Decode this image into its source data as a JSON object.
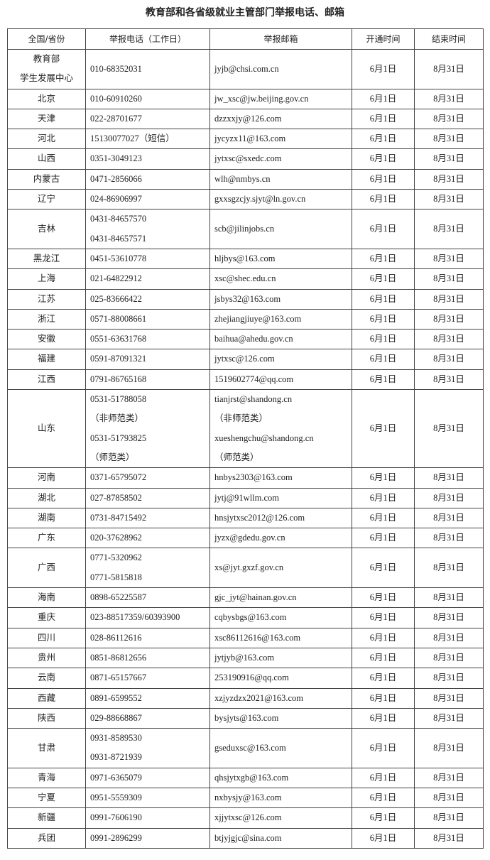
{
  "title": "教育部和各省级就业主管部门举报电话、邮箱",
  "table": {
    "headers": [
      "全国/省份",
      "举报电话（工作日）",
      "举报邮箱",
      "开通时间",
      "结束时间"
    ],
    "rows": [
      [
        [
          "教育部",
          "学生发展中心"
        ],
        "010-68352031",
        "jyjb@chsi.com.cn",
        "6月1日",
        "8月31日"
      ],
      [
        "北京",
        "010-60910260",
        "jw_xsc@jw.beijing.gov.cn",
        "6月1日",
        "8月31日"
      ],
      [
        "天津",
        "022-28701677",
        "dzzxxjy@126.com",
        "6月1日",
        "8月31日"
      ],
      [
        "河北",
        "15130077027（短信）",
        "jycyzx11@163.com",
        "6月1日",
        "8月31日"
      ],
      [
        "山西",
        "0351-3049123",
        "jytxsc@sxedc.com",
        "6月1日",
        "8月31日"
      ],
      [
        "内蒙古",
        "0471-2856066",
        "wlh@nmbys.cn",
        "6月1日",
        "8月31日"
      ],
      [
        "辽宁",
        "024-86906997",
        "gxxsgzcjy.sjyt@ln.gov.cn",
        "6月1日",
        "8月31日"
      ],
      [
        "吉林",
        [
          "0431-84657570",
          "0431-84657571"
        ],
        "scb@jilinjobs.cn",
        "6月1日",
        "8月31日"
      ],
      [
        "黑龙江",
        "0451-53610778",
        "hljbys@163.com",
        "6月1日",
        "8月31日"
      ],
      [
        "上海",
        "021-64822912",
        "xsc@shec.edu.cn",
        "6月1日",
        "8月31日"
      ],
      [
        "江苏",
        "025-83666422",
        "jsbys32@163.com",
        "6月1日",
        "8月31日"
      ],
      [
        "浙江",
        "0571-88008661",
        "zhejiangjiuye@163.com",
        "6月1日",
        "8月31日"
      ],
      [
        "安徽",
        "0551-63631768",
        "baihua@ahedu.gov.cn",
        "6月1日",
        "8月31日"
      ],
      [
        "福建",
        "0591-87091321",
        "jytxsc@126.com",
        "6月1日",
        "8月31日"
      ],
      [
        "江西",
        "0791-86765168",
        "1519602774@qq.com",
        "6月1日",
        "8月31日"
      ],
      [
        "山东",
        [
          "0531-51788058",
          "（非师范类）",
          "0531-51793825",
          "（师范类）"
        ],
        [
          "tianjrst@shandong.cn",
          "（非师范类）",
          "xueshengchu@shandong.cn",
          "（师范类）"
        ],
        "6月1日",
        "8月31日"
      ],
      [
        "河南",
        "0371-65795072",
        "hnbys2303@163.com",
        "6月1日",
        "8月31日"
      ],
      [
        "湖北",
        "027-87858502",
        "jytj@91wllm.com",
        "6月1日",
        "8月31日"
      ],
      [
        "湖南",
        "0731-84715492",
        "hnsjytxsc2012@126.com",
        "6月1日",
        "8月31日"
      ],
      [
        "广东",
        "020-37628962",
        "jyzx@gdedu.gov.cn",
        "6月1日",
        "8月31日"
      ],
      [
        "广西",
        [
          "0771-5320962",
          "0771-5815818"
        ],
        "xs@jyt.gxzf.gov.cn",
        "6月1日",
        "8月31日"
      ],
      [
        "海南",
        "0898-65225587",
        "gjc_jyt@hainan.gov.cn",
        "6月1日",
        "8月31日"
      ],
      [
        "重庆",
        "023-88517359/60393900",
        "cqbysbgs@163.com",
        "6月1日",
        "8月31日"
      ],
      [
        "四川",
        "028-86112616",
        "xsc86112616@163.com",
        "6月1日",
        "8月31日"
      ],
      [
        "贵州",
        "0851-86812656",
        "jytjyb@163.com",
        "6月1日",
        "8月31日"
      ],
      [
        "云南",
        "0871-65157667",
        "253190916@qq.com",
        "6月1日",
        "8月31日"
      ],
      [
        "西藏",
        "0891-6599552",
        "xzjyzdzx2021@163.com",
        "6月1日",
        "8月31日"
      ],
      [
        "陕西",
        "029-88668867",
        "bysjyts@163.com",
        "6月1日",
        "8月31日"
      ],
      [
        "甘肃",
        [
          "0931-8589530",
          "0931-8721939"
        ],
        "gseduxsc@163.com",
        "6月1日",
        "8月31日"
      ],
      [
        "青海",
        "0971-6365079",
        "qhsjytxgb@163.com",
        "6月1日",
        "8月31日"
      ],
      [
        "宁夏",
        "0951-5559309",
        "nxbysjy@163.com",
        "6月1日",
        "8月31日"
      ],
      [
        "新疆",
        "0991-7606190",
        "xjjytxsc@126.com",
        "6月1日",
        "8月31日"
      ],
      [
        "兵团",
        "0991-2896299",
        "btjyjgjc@sina.com",
        "6月1日",
        "8月31日"
      ]
    ]
  }
}
